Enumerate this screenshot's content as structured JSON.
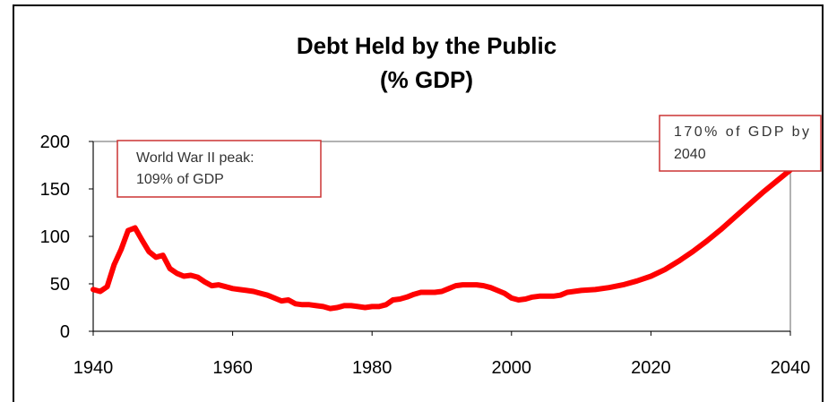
{
  "chart_data": {
    "type": "line",
    "title": "Debt Held by the Public",
    "subtitle": "(% GDP)",
    "xlabel": "",
    "ylabel": "",
    "xlim": [
      1940,
      2040
    ],
    "ylim": [
      0,
      200
    ],
    "xticks": [
      "1940",
      "1960",
      "1980",
      "2000",
      "2020",
      "2040"
    ],
    "yticks": [
      "0",
      "50",
      "100",
      "150",
      "200"
    ],
    "grid": false,
    "legend": "none",
    "series": [
      {
        "color": "#ff0000",
        "x": [
          1940,
          1941,
          1942,
          1943,
          1944,
          1945,
          1946,
          1947,
          1948,
          1949,
          1950,
          1951,
          1952,
          1953,
          1954,
          1955,
          1956,
          1957,
          1958,
          1959,
          1960,
          1961,
          1962,
          1963,
          1964,
          1965,
          1966,
          1967,
          1968,
          1969,
          1970,
          1971,
          1972,
          1973,
          1974,
          1975,
          1976,
          1977,
          1978,
          1979,
          1980,
          1981,
          1982,
          1983,
          1984,
          1985,
          1986,
          1987,
          1988,
          1989,
          1990,
          1991,
          1992,
          1993,
          1994,
          1995,
          1996,
          1997,
          1998,
          1999,
          2000,
          2001,
          2002,
          2003,
          2004,
          2005,
          2006,
          2007,
          2008,
          2010,
          2012,
          2014,
          2016,
          2018,
          2020,
          2022,
          2024,
          2026,
          2028,
          2030,
          2032,
          2034,
          2036,
          2038,
          2040
        ],
        "values": [
          44,
          42,
          47,
          70,
          86,
          106,
          109,
          96,
          84,
          78,
          80,
          66,
          61,
          58,
          59,
          57,
          52,
          48,
          49,
          47,
          45,
          44,
          43,
          42,
          40,
          38,
          35,
          32,
          33,
          29,
          28,
          28,
          27,
          26,
          24,
          25,
          27,
          27,
          26,
          25,
          26,
          26,
          28,
          33,
          34,
          36,
          39,
          41,
          41,
          41,
          42,
          45,
          48,
          49,
          49,
          49,
          48,
          46,
          43,
          40,
          35,
          33,
          34,
          36,
          37,
          37,
          37,
          38,
          41,
          43,
          44,
          46,
          49,
          53,
          58,
          65,
          74,
          84,
          95,
          107,
          120,
          133,
          146,
          158,
          170
        ]
      }
    ],
    "annotations": [
      {
        "lines": [
          "World War II peak:",
          "109% of GDP"
        ]
      },
      {
        "lines": [
          "170%  of  GDP  by",
          "2040"
        ]
      }
    ]
  }
}
